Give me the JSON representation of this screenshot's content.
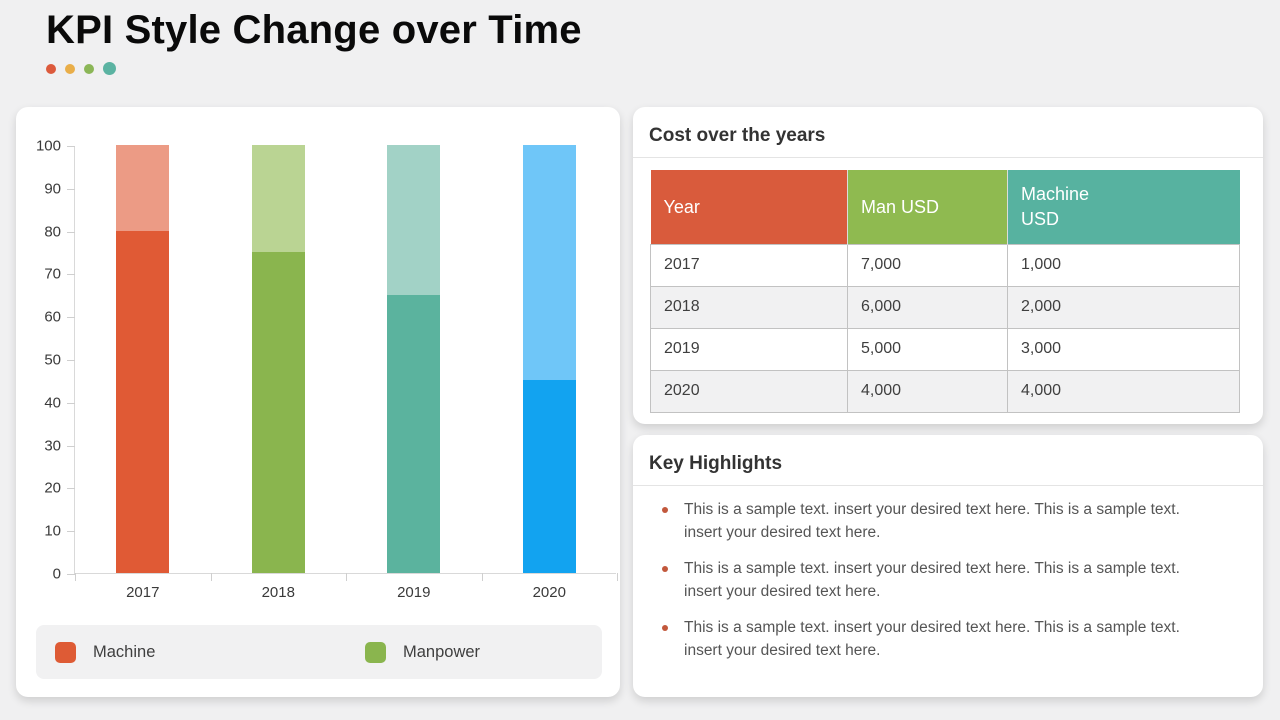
{
  "header": {
    "title": "KPI Style Change over Time",
    "accent_dot_colors": [
      "#dc5a3c",
      "#e9ae49",
      "#8bb657",
      "#5bb3a2"
    ]
  },
  "chart_data": {
    "type": "bar",
    "subtype": "stacked-percent",
    "title": "",
    "xlabel": "",
    "ylabel": "",
    "categories": [
      "2017",
      "2018",
      "2019",
      "2020"
    ],
    "series": [
      {
        "name": "solid-value",
        "values": [
          80,
          75,
          65,
          45
        ]
      },
      {
        "name": "light-remainder",
        "values": [
          20,
          25,
          35,
          55
        ]
      }
    ],
    "bar_colors": [
      {
        "solid": "#e05a35",
        "light": "#ec9b85"
      },
      {
        "solid": "#8ab54e",
        "light": "#bad493"
      },
      {
        "solid": "#5bb39e",
        "light": "#a2d2c6"
      },
      {
        "solid": "#12a3f0",
        "light": "#6fc6f8"
      }
    ],
    "ylim": [
      0,
      100
    ],
    "ytick_step": 10,
    "grid": false,
    "legend_position": "bottom",
    "legend_items": [
      {
        "label": "Machine",
        "color": "#de5b35"
      },
      {
        "label": "Manpower",
        "color": "#8ab54e"
      }
    ]
  },
  "cost_section": {
    "title": "Cost over the years",
    "table": {
      "headers": [
        {
          "label": "Year",
          "color": "#d95b3c"
        },
        {
          "label": "Man USD",
          "color": "#8fba50"
        },
        {
          "label": "Machine\nUSD",
          "color": "#57b2a0"
        }
      ],
      "rows": [
        [
          "2017",
          "7,000",
          "1,000"
        ],
        [
          "2018",
          "6,000",
          "2,000"
        ],
        [
          "2019",
          "5,000",
          "3,000"
        ],
        [
          "2020",
          "4,000",
          "4,000"
        ]
      ]
    }
  },
  "highlights": {
    "title": "Key Highlights",
    "bullet_color": "#c2583c",
    "items": [
      "This is a sample text. insert your desired text here. This is a sample text. insert your desired text here.",
      "This is a sample text. insert your desired text here. This is a sample text. insert your desired text here.",
      "This is a sample text. insert your desired text here. This is a sample text. insert your desired text here."
    ]
  }
}
